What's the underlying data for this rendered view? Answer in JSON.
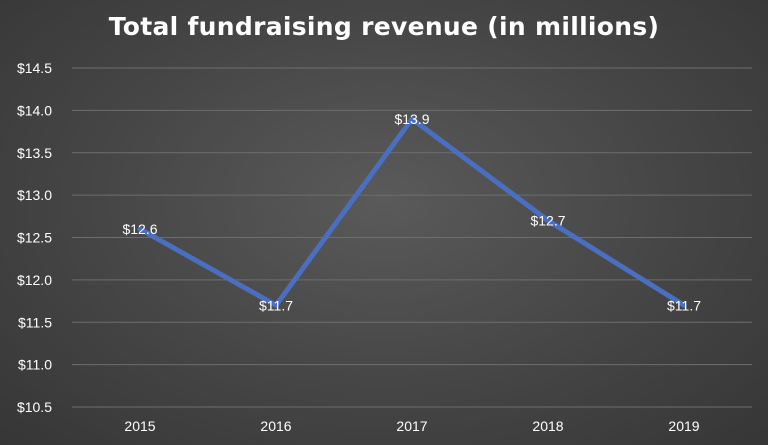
{
  "chart_data": {
    "type": "line",
    "title": "Total fundraising revenue (in millions)",
    "xlabel": "",
    "ylabel": "",
    "categories": [
      "2015",
      "2016",
      "2017",
      "2018",
      "2019"
    ],
    "values": [
      12.6,
      11.7,
      13.9,
      12.7,
      11.7
    ],
    "data_labels": [
      "$12.6",
      "$11.7",
      "$13.9",
      "$12.7",
      "$11.7"
    ],
    "ylim": [
      10.5,
      14.5
    ],
    "yticks": [
      10.5,
      11.0,
      11.5,
      12.0,
      12.5,
      13.0,
      13.5,
      14.0,
      14.5
    ],
    "ytick_labels": [
      "$10.5",
      "$11.0",
      "$11.5",
      "$12.0",
      "$12.5",
      "$13.0",
      "$13.5",
      "$14.0",
      "$14.5"
    ],
    "grid": true,
    "line_color": "#4a6fc1",
    "background_color": "#454545"
  }
}
